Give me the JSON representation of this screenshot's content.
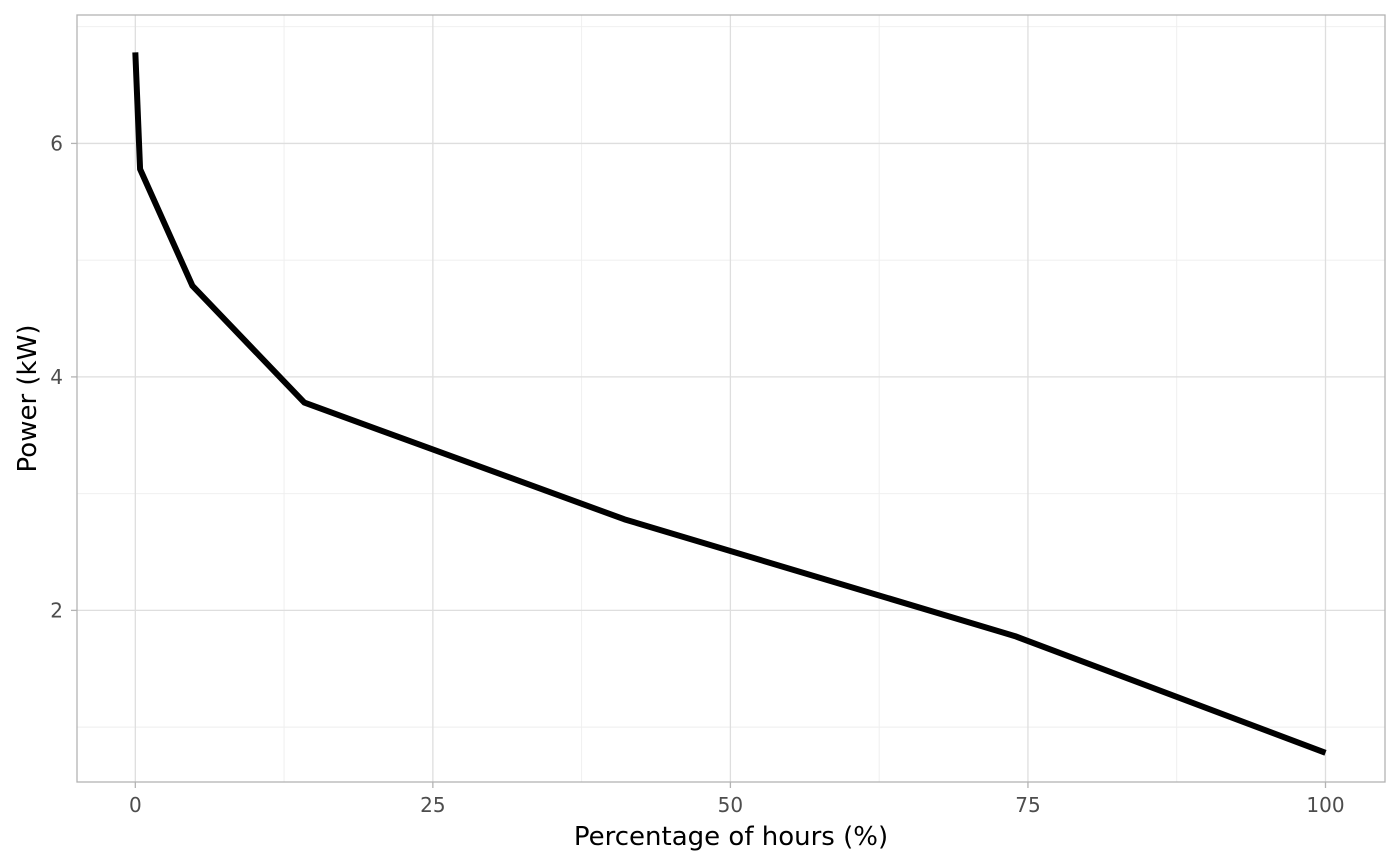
{
  "chart_data": {
    "type": "line",
    "title": "",
    "xlabel": "Percentage of hours (%)",
    "ylabel": "Power (kW)",
    "xlim": [
      -4.9,
      105
    ],
    "ylim": [
      0.53,
      7.1
    ],
    "x_ticks": [
      0,
      25,
      50,
      75,
      100
    ],
    "x_tick_labels": [
      "0",
      "25",
      "50",
      "75",
      "100"
    ],
    "y_ticks": [
      2,
      4,
      6
    ],
    "y_tick_labels": [
      "2",
      "4",
      "6"
    ],
    "x_minor_ticks": [
      12.5,
      37.5,
      62.5,
      87.5
    ],
    "y_minor_ticks": [
      1,
      3,
      5,
      7
    ],
    "grid": true,
    "legend": "none",
    "series": [
      {
        "color": "#000000",
        "x": [
          0,
          0.4,
          4.8,
          14.2,
          41.1,
          73.9,
          100
        ],
        "y": [
          6.78,
          5.78,
          4.78,
          3.78,
          2.78,
          1.78,
          0.78
        ]
      }
    ]
  }
}
